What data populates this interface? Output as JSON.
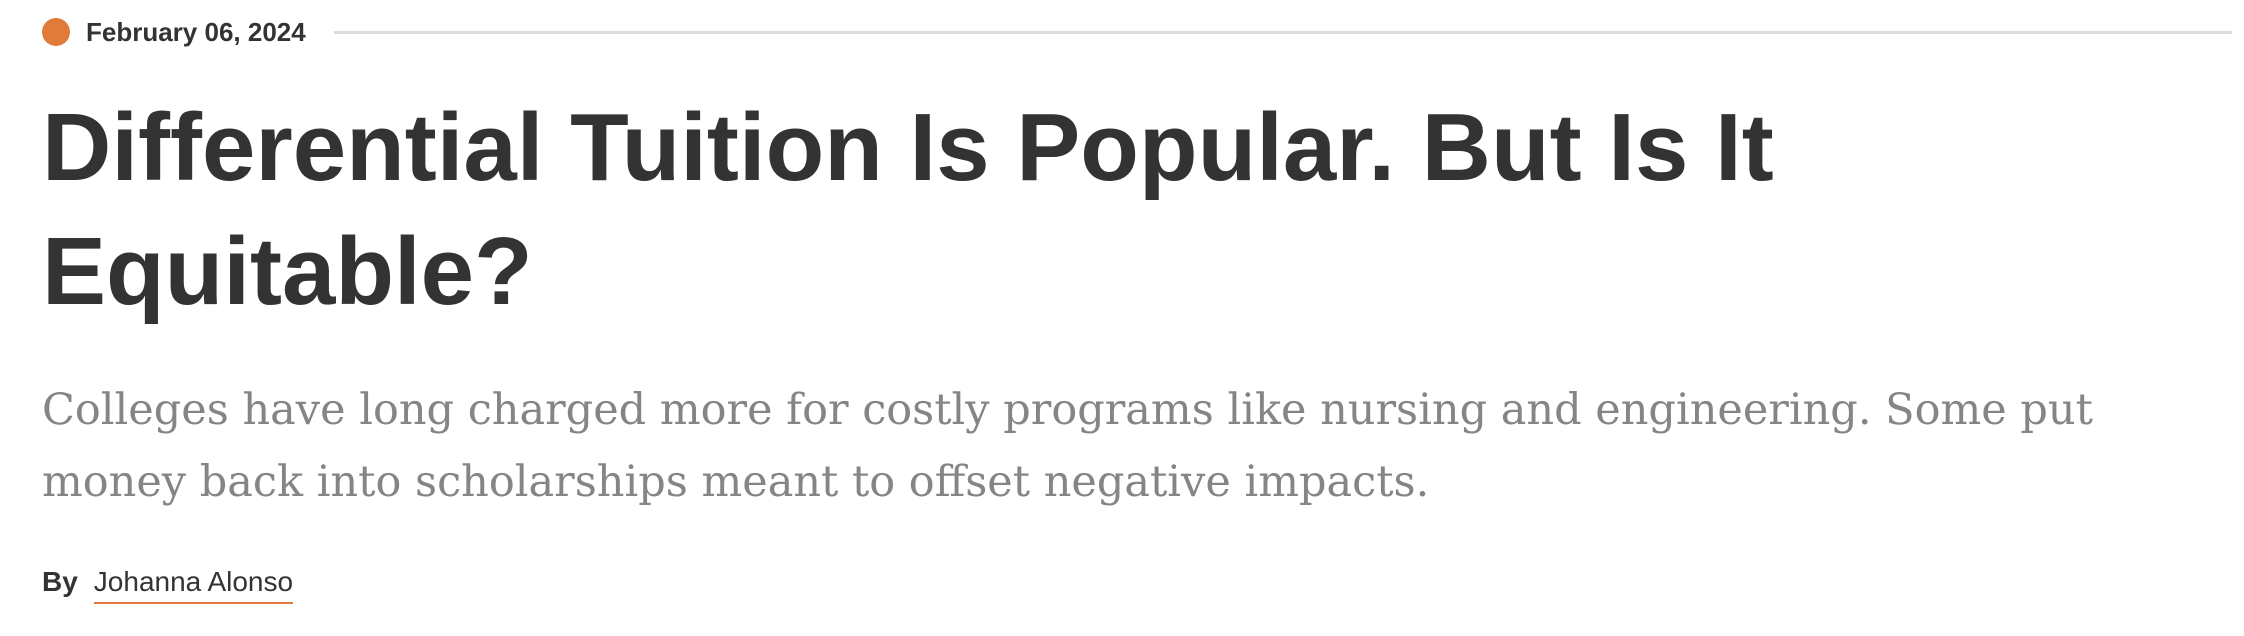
{
  "article": {
    "date": "February 06, 2024",
    "headline": "Differential Tuition Is Popular. But Is It Equitable?",
    "dek": "Colleges have long charged more for costly programs like nursing and engineering. Some put money back into scholarships meant to offset negative impacts.",
    "byline": {
      "prefix": "By",
      "author": "Johanna Alonso"
    }
  },
  "colors": {
    "accent": "#e07b39",
    "headline_text": "#333333",
    "dek_text": "#858585",
    "rule": "#dcdcdc"
  }
}
